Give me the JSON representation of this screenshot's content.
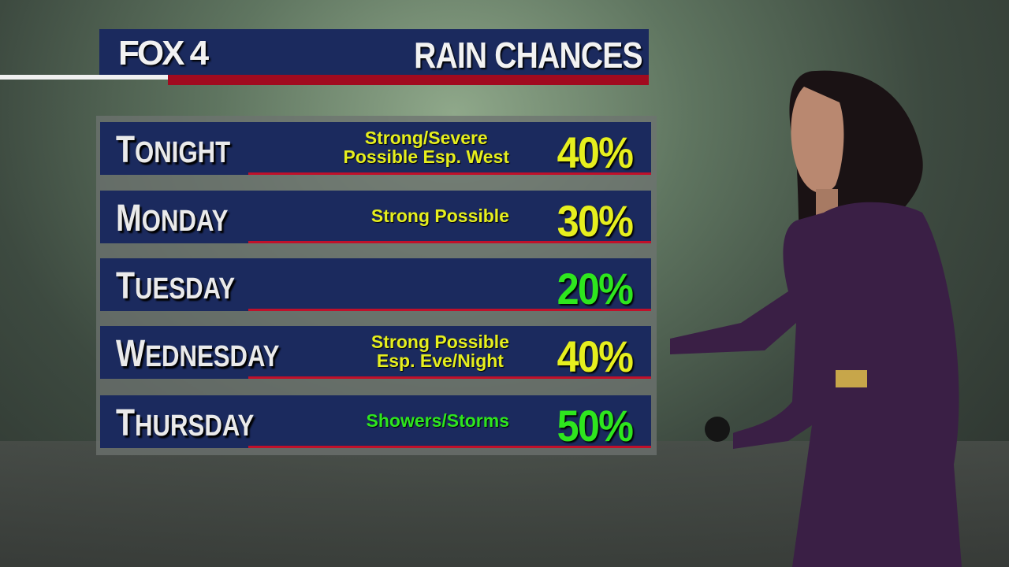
{
  "header": {
    "logo": "FOX 4",
    "title": "RAIN CHANCES"
  },
  "colors": {
    "navy": "#1b2a5e",
    "red": "#a10a1f",
    "yellow": "#e6ef1e",
    "green": "#2ee61e"
  },
  "rows": [
    {
      "day_first": "T",
      "day_rest": "ONIGHT",
      "note": "Strong/Severe\nPossible Esp. West",
      "percent": "40%",
      "color": "#e6ef1e"
    },
    {
      "day_first": "M",
      "day_rest": "ONDAY",
      "note": "Strong Possible",
      "percent": "30%",
      "color": "#e6ef1e"
    },
    {
      "day_first": "T",
      "day_rest": "UESDAY",
      "note": "",
      "percent": "20%",
      "color": "#2ee61e"
    },
    {
      "day_first": "W",
      "day_rest": "EDNESDAY",
      "note": "Strong Possible\nEsp. Eve/Night",
      "percent": "40%",
      "color": "#e6ef1e"
    },
    {
      "day_first": "T",
      "day_rest": "HURSDAY",
      "note": "Showers/Storms",
      "percent": "50%",
      "color": "#2ee61e"
    }
  ]
}
